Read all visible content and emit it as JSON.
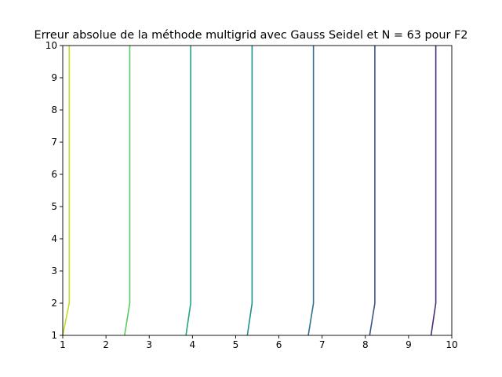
{
  "chart_data": {
    "type": "line",
    "title": "Erreur absolue de la méthode multigrid avec Gauss Seidel et N = 63 pour F2",
    "xlabel": "",
    "ylabel": "",
    "xlim": [
      1,
      10
    ],
    "ylim": [
      1,
      10
    ],
    "xticks": [
      "1",
      "2",
      "3",
      "4",
      "5",
      "6",
      "7",
      "8",
      "9",
      "10"
    ],
    "yticks": [
      "1",
      "2",
      "3",
      "4",
      "5",
      "6",
      "7",
      "8",
      "9",
      "10"
    ],
    "grid": false,
    "legend": "none",
    "series": [
      {
        "color": "#bddf26",
        "points": [
          [
            1.0,
            1
          ],
          [
            1.15,
            2
          ],
          [
            1.15,
            10
          ]
        ]
      },
      {
        "color": "#5ec962",
        "points": [
          [
            2.43,
            1
          ],
          [
            2.55,
            2
          ],
          [
            2.55,
            10
          ]
        ]
      },
      {
        "color": "#21a585",
        "points": [
          [
            3.85,
            1
          ],
          [
            3.96,
            2
          ],
          [
            3.96,
            10
          ]
        ]
      },
      {
        "color": "#1f9188",
        "points": [
          [
            5.27,
            1
          ],
          [
            5.38,
            2
          ],
          [
            5.38,
            10
          ]
        ]
      },
      {
        "color": "#2c728e",
        "points": [
          [
            6.68,
            1
          ],
          [
            6.8,
            2
          ],
          [
            6.8,
            10
          ]
        ]
      },
      {
        "color": "#3b528b",
        "points": [
          [
            8.1,
            1
          ],
          [
            8.22,
            2
          ],
          [
            8.22,
            10
          ]
        ]
      },
      {
        "color": "#472d7b",
        "points": [
          [
            9.52,
            1
          ],
          [
            9.63,
            2
          ],
          [
            9.63,
            10
          ]
        ]
      }
    ]
  }
}
